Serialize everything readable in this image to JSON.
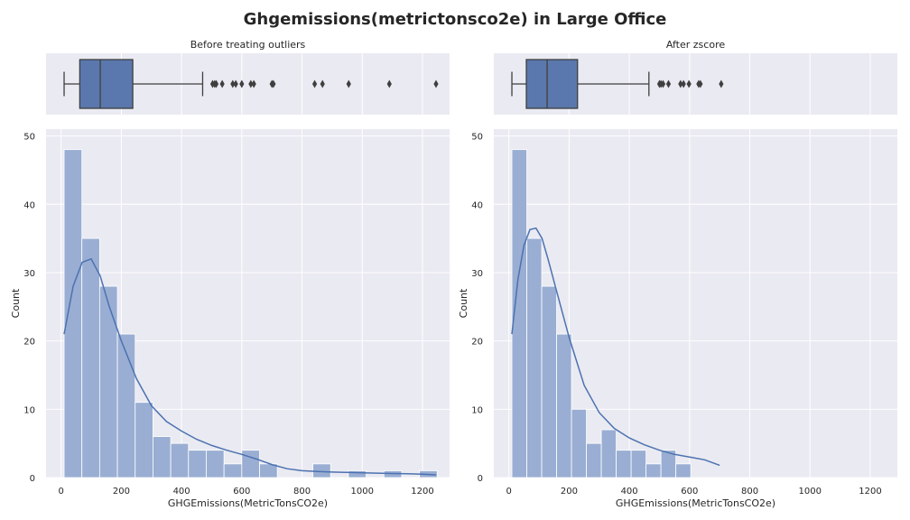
{
  "figure_title": "Ghgemissions(metrictonsco2e) in Large Office",
  "colors": {
    "panel_bg": "#eaeaf2",
    "grid": "#ffffff",
    "bar_fill": "#9aaed3",
    "bar_edge": "#ffffff",
    "kde_line": "#4c72b0",
    "box_fill": "#5a78ad",
    "box_line": "#3f3f3f",
    "text": "#262626"
  },
  "chart_data": [
    {
      "type": "box",
      "title": "Before treating outliers",
      "xlim": [
        -50,
        1290
      ],
      "whisker_low": 10,
      "q1": 62,
      "median": 130,
      "q3": 238,
      "whisker_high": 470,
      "outliers": [
        503,
        510,
        515,
        535,
        570,
        580,
        600,
        630,
        640,
        700,
        705,
        842,
        868,
        955,
        1090,
        1245
      ]
    },
    {
      "type": "box",
      "title": "After zscore",
      "xlim": [
        -50,
        1290
      ],
      "whisker_low": 10,
      "q1": 58,
      "median": 127,
      "q3": 228,
      "whisker_high": 465,
      "outliers": [
        500,
        505,
        512,
        530,
        570,
        580,
        598,
        630,
        636,
        705
      ]
    },
    {
      "type": "histogram",
      "xlabel": "GHGEmissions(MetricTonsCO2e)",
      "ylabel": "Count",
      "xlim": [
        -50,
        1290
      ],
      "ylim": [
        0,
        51
      ],
      "xticks": [
        0,
        200,
        400,
        600,
        800,
        1000,
        1200
      ],
      "yticks": [
        0,
        10,
        20,
        30,
        40,
        50
      ],
      "bin_start": 10,
      "bin_width": 59,
      "counts": [
        48,
        35,
        28,
        21,
        11,
        6,
        5,
        4,
        4,
        2,
        4,
        2,
        0,
        0,
        2,
        0,
        1,
        0,
        1,
        0,
        1
      ],
      "kde_x": [
        10,
        40,
        70,
        100,
        130,
        160,
        200,
        250,
        300,
        350,
        400,
        450,
        500,
        550,
        600,
        650,
        700,
        750,
        800,
        850,
        900,
        950,
        1000,
        1050,
        1100,
        1150,
        1200,
        1245
      ],
      "kde_y": [
        21,
        28,
        31.5,
        32,
        29.5,
        25,
        20,
        14.5,
        10.5,
        8.2,
        6.8,
        5.6,
        4.7,
        4.0,
        3.4,
        2.7,
        1.9,
        1.3,
        1.0,
        0.9,
        0.8,
        0.75,
        0.7,
        0.65,
        0.6,
        0.55,
        0.5,
        0.4
      ]
    },
    {
      "type": "histogram",
      "xlabel": "GHGEmissions(MetricTonsCO2e)",
      "ylabel": "Count",
      "xlim": [
        -50,
        1290
      ],
      "ylim": [
        0,
        51
      ],
      "xticks": [
        0,
        200,
        400,
        600,
        800,
        1000,
        1200
      ],
      "yticks": [
        0,
        10,
        20,
        30,
        40,
        50
      ],
      "bin_start": 10,
      "bin_width": 49.5,
      "counts": [
        48,
        35,
        28,
        21,
        10,
        5,
        7,
        4,
        4,
        2,
        4,
        2
      ],
      "kde_x": [
        10,
        30,
        50,
        70,
        90,
        110,
        130,
        160,
        200,
        250,
        300,
        350,
        400,
        450,
        500,
        550,
        600,
        650,
        700
      ],
      "kde_y": [
        21,
        29,
        34,
        36.3,
        36.5,
        35,
        32,
        27,
        20.5,
        13.5,
        9.5,
        7.2,
        5.8,
        4.8,
        4.0,
        3.4,
        3.0,
        2.6,
        1.8
      ]
    }
  ]
}
